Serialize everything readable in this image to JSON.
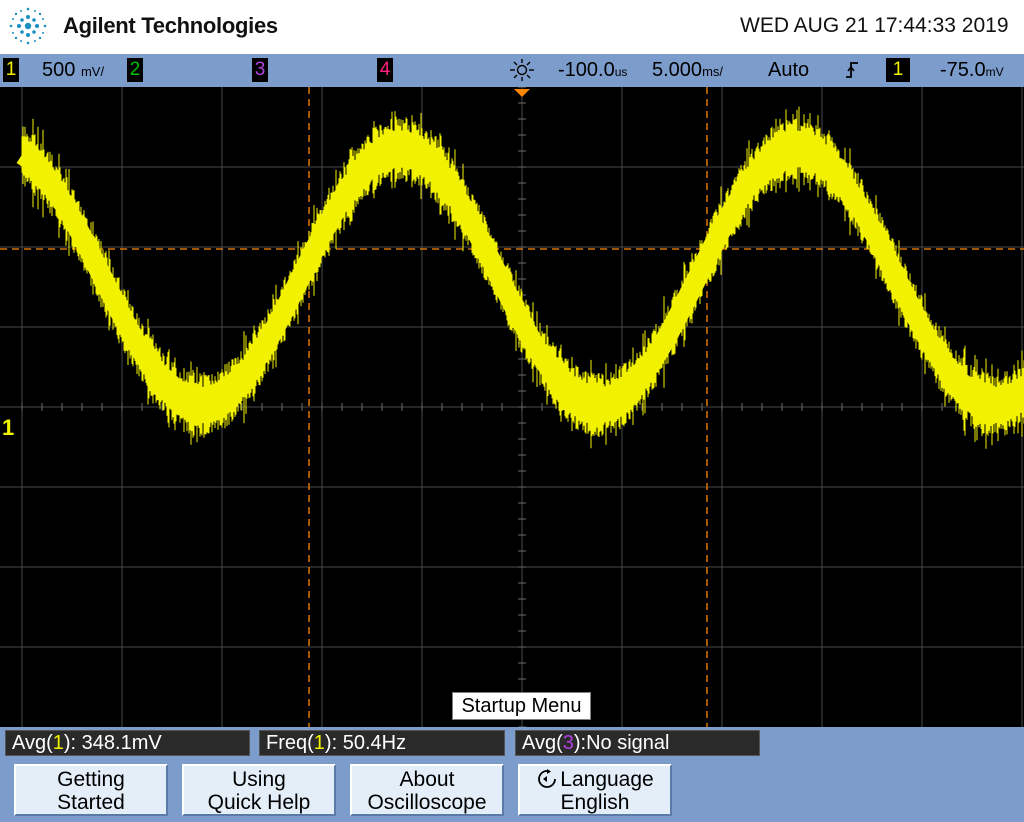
{
  "header": {
    "brand": "Agilent Technologies",
    "datetime": "WED AUG 21 17:44:33 2019",
    "logo_icon": "agilent-spark-icon"
  },
  "status": {
    "ch1_num": "1",
    "ch1_scale": "500",
    "ch1_unit": "mV/",
    "ch2_num": "2",
    "ch3_num": "3",
    "ch4_num": "4",
    "timebase_icon": "timebase-sun-icon",
    "delay": "-100.0",
    "delay_unit": "us",
    "timescale": "5.000",
    "timescale_unit": "ms/",
    "trigger_mode": "Auto",
    "trigger_edge_icon": "rising-edge-icon",
    "trigger_source": "1",
    "trigger_level": "-75.0",
    "trigger_level_unit": "mV"
  },
  "colors": {
    "ch1": "#f2f200",
    "ch2": "#00c000",
    "ch3": "#b040e0",
    "ch4": "#ff2080",
    "cursor": "#ff8800",
    "bar": "#7c9ccc"
  },
  "screen": {
    "ground_marker": "1"
  },
  "menu": {
    "title": "Startup Menu"
  },
  "measurements": {
    "avg1_prefix": "Avg(",
    "avg1_ch": "1",
    "avg1_suffix": "): 348.1mV",
    "freq1_prefix": "Freq(",
    "freq1_ch": "1",
    "freq1_suffix": "): 50.4Hz",
    "avg3_prefix": "Avg(",
    "avg3_ch": "3",
    "avg3_suffix": "):No signal"
  },
  "softkeys": {
    "k1_line1": "Getting",
    "k1_line2": "Started",
    "k2_line1": "Using",
    "k2_line2": "Quick Help",
    "k3_line1": "About",
    "k3_line2": "Oscilloscope",
    "k4_icon": "rotate-knob-icon",
    "k4_line1": "Language",
    "k4_line2": "English"
  },
  "waveform": {
    "channel": "1",
    "frequency_hz": 50.4,
    "volts_per_div": 0.5,
    "time_per_div_ms": 5.0,
    "shape": "noisy sine"
  }
}
